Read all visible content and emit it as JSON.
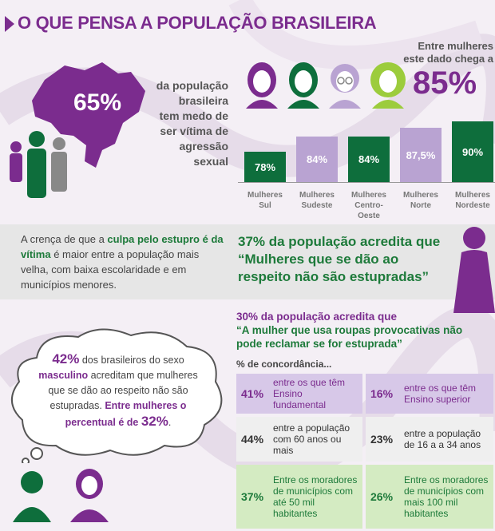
{
  "title": "O QUE PENSA A POPULAÇÃO BRASILEIRA",
  "brazil": {
    "percent": "65%",
    "description_lines": [
      "da população",
      "brasileira",
      "tem medo de",
      "ser vítima de",
      "agressão sexual"
    ]
  },
  "women": {
    "note_lines": [
      "Entre mulheres",
      "este dado chega a"
    ],
    "percent": "85%"
  },
  "regions": [
    {
      "value": 78,
      "label": "78%",
      "name_lines": [
        "Mulheres",
        "Sul"
      ],
      "color": "#0e6e3c"
    },
    {
      "value": 84,
      "label": "84%",
      "name_lines": [
        "Mulheres",
        "Sudeste"
      ],
      "color": "#b9a3d2"
    },
    {
      "value": 84,
      "label": "84%",
      "name_lines": [
        "Mulheres",
        "Centro-",
        "Oeste"
      ],
      "color": "#0e6e3c"
    },
    {
      "value": 87.5,
      "label": "87,5%",
      "name_lines": [
        "Mulheres",
        "Norte"
      ],
      "color": "#b9a3d2"
    },
    {
      "value": 90,
      "label": "90%",
      "name_lines": [
        "Mulheres",
        "Nordeste"
      ],
      "color": "#0e6e3c"
    }
  ],
  "belief": {
    "pre": "A crença de que a ",
    "highlight": "culpa pelo estupro é da vítima",
    "post": " é maior entre a população mais velha, com baixa escolaridade e em municípios menores."
  },
  "stat37": "37% da população acredita que “Mulheres que se dão ao respeito não são estupradas”",
  "stat30": {
    "intro": "30% da população acredita que",
    "quote": "“A mulher que usa roupas provocativas não pode reclamar se for estuprada”",
    "concordance": "% de concordância..."
  },
  "concordance_table": [
    {
      "left_pct": "41%",
      "left_text": "entre os que têm Ensino fundamental",
      "right_pct": "16%",
      "right_text": "entre os que têm Ensino superior",
      "style": "purple"
    },
    {
      "left_pct": "44%",
      "left_text": "entre a população com 60 anos ou mais",
      "right_pct": "23%",
      "right_text": "entre a população de 16 a a 34 anos",
      "style": "white"
    },
    {
      "left_pct": "37%",
      "left_text": "Entre os moradores de municípios com até 50 mil habitantes",
      "right_pct": "26%",
      "right_text": "Entre os moradores de municípios com mais 100 mil habitantes",
      "style": "green"
    }
  ],
  "cloud": {
    "pct42": "42%",
    "t1": " dos brasileiros do sexo ",
    "masc": "masculino",
    "t2": " acreditam que mulheres que se dão ao respeito não são estupradas. ",
    "t3": "Entre mulheres o percentual é de ",
    "pct32": "32%",
    "t4": "."
  },
  "colors": {
    "purple": "#7b2c8e",
    "green": "#0e6e3c",
    "lavender": "#b9a3d2",
    "light_green": "#d4ebc2"
  },
  "icons": [
    "brazil-map-icon",
    "people-group-icon",
    "woman-heads-icon",
    "woman-figure-icon",
    "thought-cloud-icon",
    "man-avatar-icon",
    "woman-avatar-icon"
  ]
}
